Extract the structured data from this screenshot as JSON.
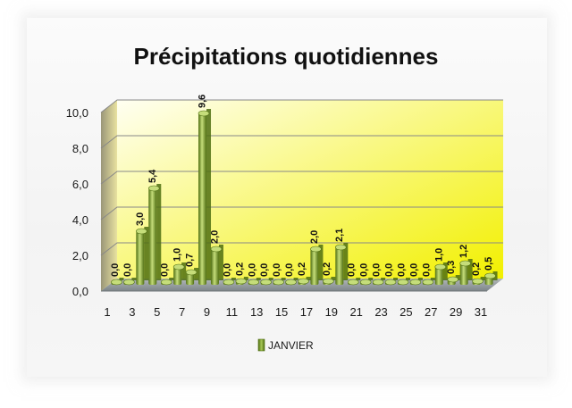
{
  "chart_data": {
    "type": "bar",
    "title": "Précipitations quotidiennes",
    "xlabel": "",
    "ylabel": "",
    "ylim": [
      0,
      10
    ],
    "yticks": [
      "0,0",
      "2,0",
      "4,0",
      "6,0",
      "8,0",
      "10,0"
    ],
    "categories": [
      "1",
      "2",
      "3",
      "4",
      "5",
      "6",
      "7",
      "8",
      "9",
      "10",
      "11",
      "12",
      "13",
      "14",
      "15",
      "16",
      "17",
      "18",
      "19",
      "20",
      "21",
      "22",
      "23",
      "24",
      "25",
      "26",
      "27",
      "28",
      "29",
      "30",
      "31"
    ],
    "xtick_labels": [
      "1",
      "3",
      "5",
      "7",
      "9",
      "11",
      "13",
      "15",
      "17",
      "19",
      "21",
      "23",
      "25",
      "27",
      "29",
      "31"
    ],
    "series": [
      {
        "name": "JANVIER",
        "values": [
          0.0,
          0.0,
          3.0,
          5.4,
          0.0,
          1.0,
          0.7,
          9.6,
          2.0,
          0.0,
          0.2,
          0.0,
          0.0,
          0.0,
          0.0,
          0.2,
          2.0,
          0.2,
          2.1,
          0.0,
          0.0,
          0.0,
          0.0,
          0.0,
          0.0,
          0.0,
          1.0,
          0.3,
          1.2,
          0.2,
          0.5
        ],
        "data_labels": [
          "0,0",
          "0,0",
          "3,0",
          "5,4",
          "0,0",
          "1,0",
          "0,7",
          "9,6",
          "2,0",
          "0,0",
          "0,2",
          "0,0",
          "0,0",
          "0,0",
          "0,0",
          "0,2",
          "2,0",
          "0,2",
          "2,1",
          "0,0",
          "0,0",
          "0,0",
          "0,0",
          "0,0",
          "0,0",
          "0,0",
          "1,0",
          "0,3",
          "1,2",
          "0,2",
          "0,5"
        ]
      }
    ],
    "grid": true,
    "legend_position": "bottom",
    "colors": {
      "bar": "#8cb43a",
      "bar_dark": "#4f6e12",
      "bar_light": "#c5dd7a",
      "wall_top": "#fffff2",
      "wall_bottom": "#f2f000",
      "side_wall": "#f1e8a0",
      "floor": "#8d9598",
      "gridline": "#888888"
    }
  }
}
